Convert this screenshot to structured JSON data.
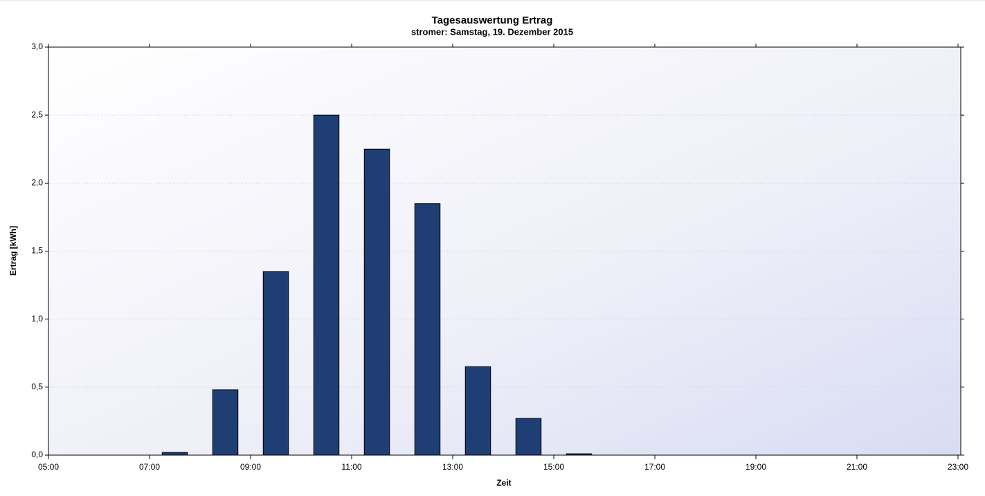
{
  "chart_data": {
    "type": "bar",
    "title": "Tagesauswertung Ertrag",
    "subtitle": "stromer: Samstag, 19. Dezember 2015",
    "x_label": "Zeit",
    "y_label": "Ertrag [kWh]",
    "x": [
      7.5,
      8.5,
      9.5,
      10.5,
      11.5,
      12.5,
      13.5,
      14.5,
      15.5
    ],
    "values": [
      0.02,
      0.48,
      1.35,
      2.5,
      2.25,
      1.85,
      0.65,
      0.27,
      0.01
    ],
    "color": "#1f3f74",
    "xlim": [
      5,
      23
    ],
    "xticks": [
      {
        "value": 5,
        "label": "05:00"
      },
      {
        "value": 7,
        "label": "07:00"
      },
      {
        "value": 9,
        "label": "09:00"
      },
      {
        "value": 11,
        "label": "11:00"
      },
      {
        "value": 13,
        "label": "13:00"
      },
      {
        "value": 15,
        "label": "15:00"
      },
      {
        "value": 17,
        "label": "17:00"
      },
      {
        "value": 19,
        "label": "19:00"
      },
      {
        "value": 21,
        "label": "21:00"
      },
      {
        "value": 23,
        "label": "23:00"
      }
    ],
    "ylim": [
      0,
      3
    ],
    "yticks": [
      {
        "value": 0,
        "label": "0,0"
      },
      {
        "value": 0.5,
        "label": "0,5"
      },
      {
        "value": 1,
        "label": "1,0"
      },
      {
        "value": 1.5,
        "label": "1,5"
      },
      {
        "value": 2,
        "label": "2,0"
      },
      {
        "value": 2.5,
        "label": "2,5"
      },
      {
        "value": 3,
        "label": "3,0"
      }
    ],
    "grid": true
  }
}
